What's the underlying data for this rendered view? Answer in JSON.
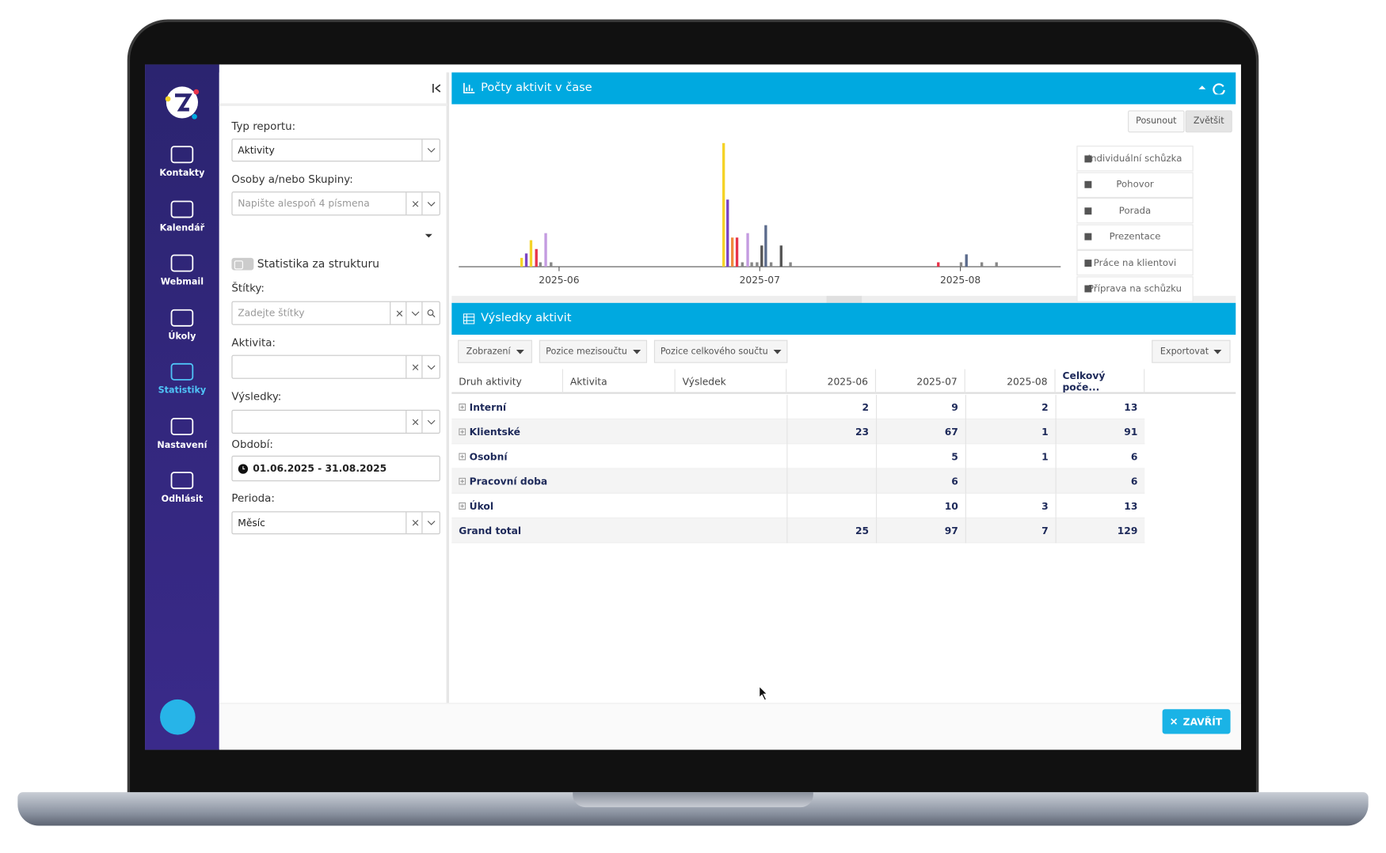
{
  "sidebar": {
    "items": [
      "Kontakty",
      "Kalendář",
      "Webmail",
      "Úkoly",
      "Statistiky",
      "Nastavení",
      "Odhlásit"
    ]
  },
  "filters": {
    "report_type_label": "Typ reportu:",
    "report_type": "Aktivity",
    "persons_label": "Osoby a/nebo Skupiny:",
    "persons_placeholder": "Napište alespoň 4 písmena",
    "structure_toggle": "Statistika za strukturu",
    "tags_label": "Štítky:",
    "tags_placeholder": "Zadejte štítky",
    "activity_label": "Aktivita:",
    "results_label": "Výsledky:",
    "period_label": "Období:",
    "period": "01.06.2025 - 31.08.2025",
    "interval_label": "Perioda:",
    "interval": "Měsíc"
  },
  "chart_panel": {
    "title": "Počty aktivit v čase",
    "buttons": [
      "Posunout",
      "Zvětšit"
    ]
  },
  "chart_data": {
    "type": "bar",
    "x": [
      -5.6,
      -4.9,
      -4.2,
      -3.4,
      -2.8,
      -2.0,
      -1.2,
      24.6,
      25.2,
      25.9,
      26.6,
      27.4,
      28.2,
      28.8,
      29.6,
      30.3,
      30.9,
      31.7,
      33.2,
      34.6,
      56.7,
      60.1,
      60.9,
      63.2,
      65.4
    ],
    "values": [
      1,
      1.5,
      3,
      2,
      0.5,
      3.8,
      0.5,
      14,
      7.6,
      3.3,
      3.3,
      0.5,
      3.8,
      0.5,
      0.5,
      2.4,
      4.7,
      0.5,
      2.4,
      0.5,
      0.5,
      0.5,
      1.4,
      0.5,
      0.5
    ],
    "colors": [
      "#f5d327",
      "#7b44c4",
      "#f5d327",
      "#e8334a",
      "#888888",
      "#c49be0",
      "#888888",
      "#f5d327",
      "#7b44c4",
      "#f08a3e",
      "#e8334a",
      "#888888",
      "#c49be0",
      "#888888",
      "#888888",
      "#555555",
      "#5b6b8c",
      "#888888",
      "#555555",
      "#888888",
      "#e8334a",
      "#888888",
      "#5b6b8c",
      "#888888",
      "#888888"
    ],
    "xlim": [
      -15,
      75
    ],
    "ylim": [
      0,
      14
    ],
    "xticks": [
      {
        "value": 0,
        "label": "2025-06"
      },
      {
        "value": 30,
        "label": "2025-07"
      },
      {
        "value": 60,
        "label": "2025-08"
      }
    ],
    "legend": [
      "Individuální schůzka",
      "Pohovor",
      "Porada",
      "Prezentace",
      "Práce na klientovi",
      "Příprava na schůzku"
    ]
  },
  "table_panel": {
    "title": "Výsledky aktivit",
    "toolbar": [
      "Zobrazení",
      "Pozice mezisoučtu",
      "Pozice celkového součtu"
    ],
    "export": "Exportovat",
    "columns": [
      "Druh aktivity",
      "Aktivita",
      "Výsledek",
      "2025-06",
      "2025-07",
      "2025-08",
      "Celkový poče..."
    ],
    "rows": [
      [
        "Interní",
        2,
        9,
        2,
        13
      ],
      [
        "Klientské",
        23,
        67,
        1,
        91
      ],
      [
        "Osobní",
        null,
        5,
        1,
        6
      ],
      [
        "Pracovní doba",
        null,
        6,
        null,
        6
      ],
      [
        "Úkol",
        null,
        10,
        3,
        13
      ]
    ],
    "total": [
      "Grand total",
      25,
      97,
      7,
      129
    ]
  },
  "close": "ZAVŘÍT"
}
